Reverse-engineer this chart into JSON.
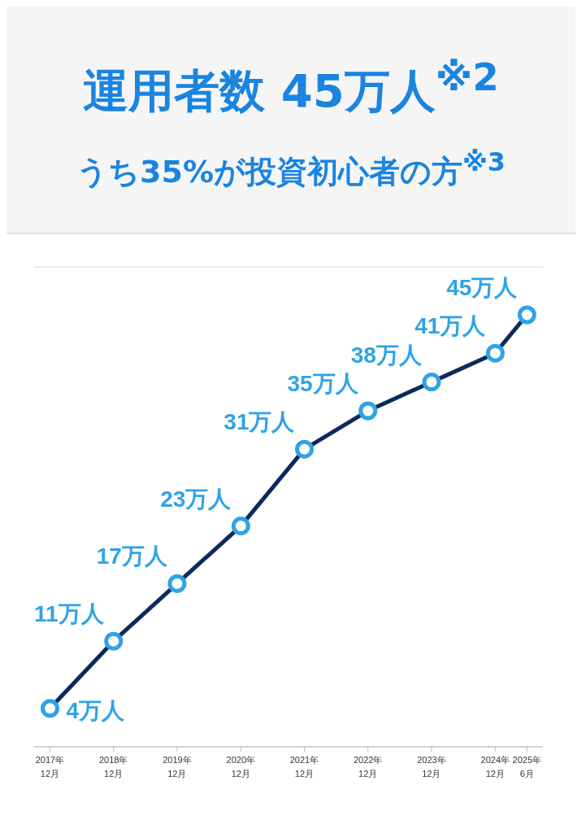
{
  "chart_data": {
    "type": "line",
    "title": "運用者数 45万人$^{※2}$",
    "subtitle": "うち35%が投資初心者の方$^{※3}$",
    "x": [
      "2017-12",
      "2018-12",
      "2019-12",
      "2020-12",
      "2021-12",
      "2022-12",
      "2023-12",
      "2024-12",
      "2025-06"
    ],
    "series": [
      {
        "color": "#0b2a5c",
        "colors": [
          "#2fa3e6",
          "#2fa3e6",
          "#2fa3e6",
          "#2fa3e6",
          "#2fa3e6",
          "#2fa3e6",
          "#2fa3e6",
          "#2fa3e6",
          "#2fa3e6"
        ],
        "values": [
          4,
          11,
          17,
          23,
          31,
          35,
          38,
          41,
          45
        ],
        "value_labels": [
          "4万人",
          "11万人",
          "17万人",
          "23万人",
          "31万人",
          "35万人",
          "38万人",
          "41万人",
          "45万人"
        ]
      }
    ],
    "xlim": [
      "2017-09",
      "2025-09"
    ],
    "xticks": [
      {
        "value": "2017-12",
        "label": "2017年\n12月"
      },
      {
        "value": "2018-12",
        "label": "2018年\n12月"
      },
      {
        "value": "2019-12",
        "label": "2019年\n12月"
      },
      {
        "value": "2020-12",
        "label": "2020年\n12月"
      },
      {
        "value": "2021-12",
        "label": "2021年\n12月"
      },
      {
        "value": "2022-12",
        "label": "2022年\n12月"
      },
      {
        "value": "2023-12",
        "label": "2023年\n12月"
      },
      {
        "value": "2024-12",
        "label": "2024年\n12月"
      },
      {
        "value": "2025-06",
        "label": "2025年\n6月"
      }
    ],
    "ylim": [
      0,
      50
    ],
    "grid": "y",
    "tick_labels": "x",
    "marker": "circle",
    "line_style": "solid"
  }
}
